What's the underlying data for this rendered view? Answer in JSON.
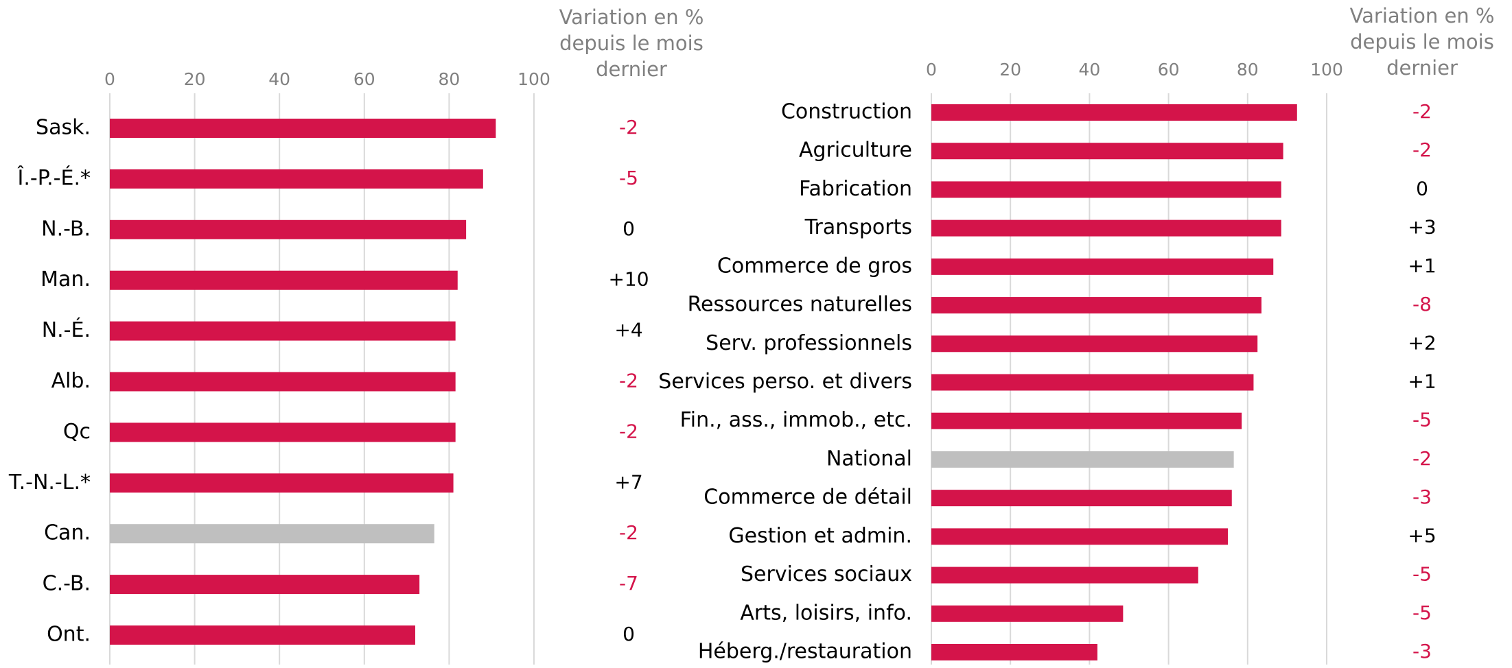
{
  "chart_data": [
    {
      "type": "bar",
      "orientation": "horizontal",
      "categories": [
        "Sask.",
        "Î.-P.-É.*",
        "N.-B.",
        "Man.",
        "N.-É.",
        "Alb.",
        "Qc",
        "T.-N.-L.*",
        "Can.",
        "C.-B.",
        "Ont."
      ],
      "values": [
        91,
        88,
        84,
        82,
        81.5,
        81.5,
        81.5,
        81,
        76.5,
        73,
        72
      ],
      "colors": [
        "#d4144a",
        "#d4144a",
        "#d4144a",
        "#d4144a",
        "#d4144a",
        "#d4144a",
        "#d4144a",
        "#d4144a",
        "#bfbfbf",
        "#d4144a",
        "#d4144a"
      ],
      "xlim": [
        0,
        100
      ],
      "xticks": [
        0,
        20,
        40,
        60,
        80,
        100
      ],
      "grid": true,
      "variations": {
        "title": "Variation en % depuis le mois dernier",
        "values": [
          -2,
          -5,
          0,
          10,
          4,
          -2,
          -2,
          7,
          -2,
          -7,
          0
        ],
        "value_labels": [
          "-2",
          "-5",
          "0",
          "+10",
          "+4",
          "-2",
          "-2",
          "+7",
          "-2",
          "-7",
          "0"
        ],
        "color": "#000000",
        "negative_color": "#d4144a"
      }
    },
    {
      "type": "bar",
      "orientation": "horizontal",
      "categories": [
        "Construction",
        "Agriculture",
        "Fabrication",
        "Transports",
        "Commerce de gros",
        "Ressources naturelles",
        "Serv. professionnels",
        "Services perso. et divers",
        "Fin., ass., immob., etc.",
        "National",
        "Commerce de détail",
        "Gestion et admin.",
        "Services sociaux",
        "Arts, loisirs, info.",
        "Héberg./restauration"
      ],
      "values": [
        92.5,
        89,
        88.5,
        88.5,
        86.5,
        83.5,
        82.5,
        81.5,
        78.5,
        76.5,
        76,
        75,
        67.5,
        48.5,
        42
      ],
      "colors": [
        "#d4144a",
        "#d4144a",
        "#d4144a",
        "#d4144a",
        "#d4144a",
        "#d4144a",
        "#d4144a",
        "#d4144a",
        "#d4144a",
        "#bfbfbf",
        "#d4144a",
        "#d4144a",
        "#d4144a",
        "#d4144a",
        "#d4144a"
      ],
      "xlim": [
        0,
        100
      ],
      "xticks": [
        0,
        20,
        40,
        60,
        80,
        100
      ],
      "grid": true,
      "variations": {
        "title": "Variation en % depuis le mois dernier",
        "values": [
          -2,
          -2,
          0,
          3,
          1,
          -8,
          2,
          1,
          -5,
          -2,
          -3,
          5,
          -5,
          -5,
          -3
        ],
        "value_labels": [
          "-2",
          "-2",
          "0",
          "+3",
          "+1",
          "-8",
          "+2",
          "+1",
          "-5",
          "-2",
          "-3",
          "+5",
          "-5",
          "-5",
          "-3"
        ],
        "color": "#000000",
        "negative_color": "#d4144a"
      }
    }
  ]
}
